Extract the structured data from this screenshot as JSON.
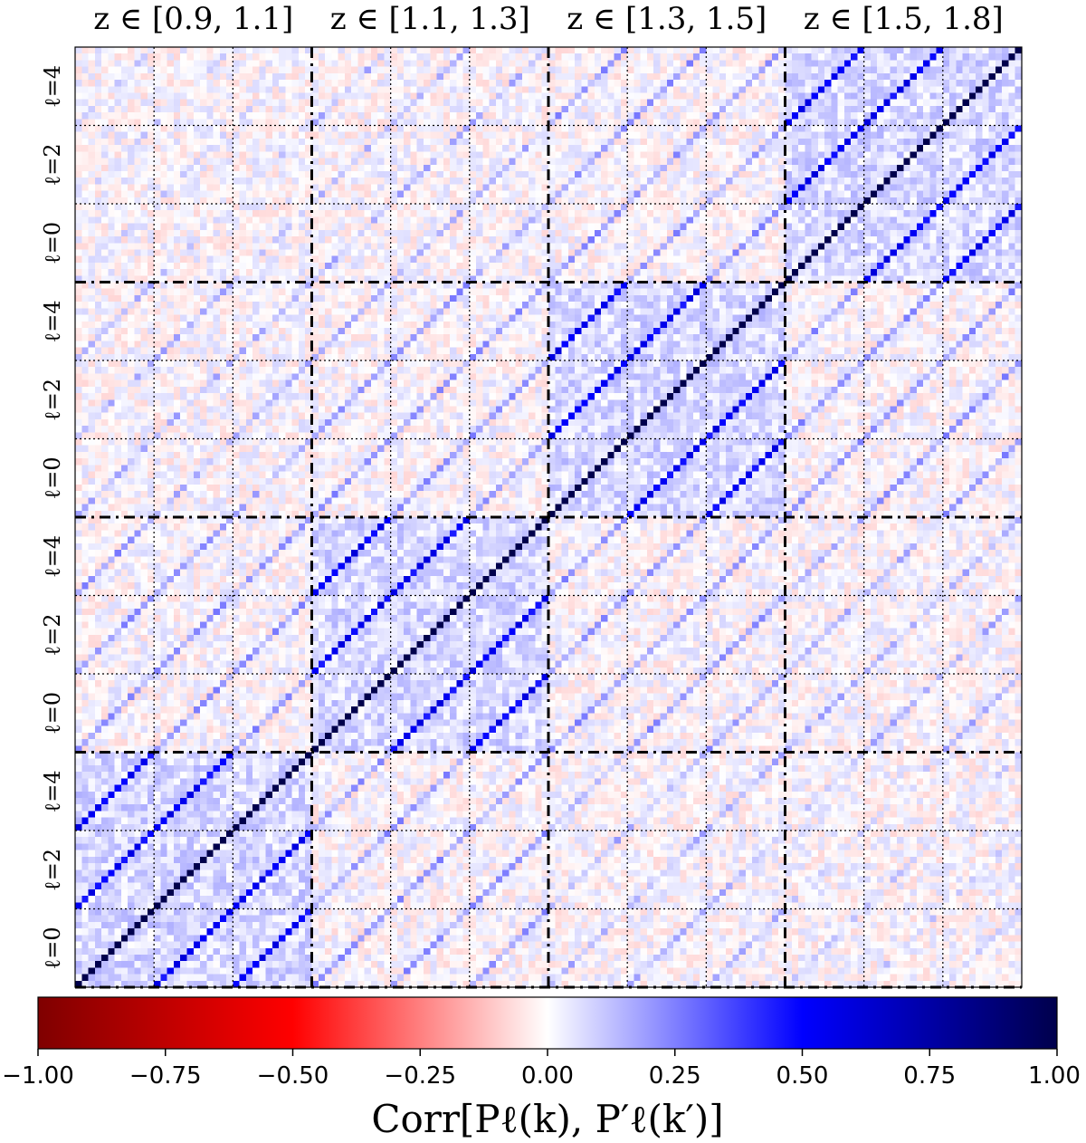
{
  "chart_data": {
    "type": "heatmap",
    "title": "",
    "description_colorbar_label": "Corr[P_ℓ(k), P′_ℓ(k′)]",
    "colorbar": {
      "label": "Corr[Pℓ(k), P′ℓ(k′)]",
      "min": -1.0,
      "max": 1.0,
      "ticks": [
        -1.0,
        -0.75,
        -0.5,
        -0.25,
        0.0,
        0.25,
        0.5,
        0.75,
        1.0
      ],
      "tick_labels": [
        "−1.00",
        "−0.75",
        "−0.50",
        "−0.25",
        "0.00",
        "0.25",
        "0.50",
        "0.75",
        "1.00"
      ],
      "colormap": "seismic_r",
      "colors": [
        "#7f0000",
        "#ff0000",
        "#ffffff",
        "#0000ff",
        "#00004c"
      ]
    },
    "redshift_bins": [
      "z ∈ [0.9, 1.1]",
      "z ∈ [1.1, 1.3]",
      "z ∈ [1.3, 1.5]",
      "z ∈ [1.5, 1.8]"
    ],
    "multipoles": [
      "ℓ=0",
      "ℓ=2",
      "ℓ=4"
    ],
    "row_multipole_labels_top_to_bottom": [
      "ℓ=4",
      "ℓ=2",
      "ℓ=0",
      "ℓ=4",
      "ℓ=2",
      "ℓ=0",
      "ℓ=4",
      "ℓ=2",
      "ℓ=0",
      "ℓ=4",
      "ℓ=2",
      "ℓ=0"
    ],
    "matrix_size_blocks": 12,
    "diagonal_correlation": 1.0,
    "same_z_block_background": 0.15,
    "cross_multipole_diagonal": 0.45,
    "cross_z_diagonal": 0.25,
    "noise_amplitude": 0.08
  }
}
